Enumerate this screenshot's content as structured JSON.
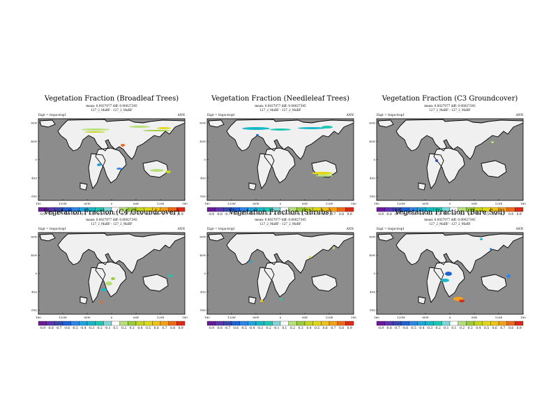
{
  "chart_data": [
    {
      "type": "heatmap",
      "title": "Vegetation Fraction (Broadleaf Trees)",
      "stats": "mean: 0.0027077  diff: 0.00027345",
      "expt": "Expt = tropx-trop1",
      "version": "127_2_MaRF - 127_2_MaRF",
      "period": "ANN",
      "lat_ticks": [
        "60N",
        "40N",
        "0",
        "40S",
        "80S"
      ],
      "lon_ticks": [
        "180",
        "120W",
        "60W",
        "0",
        "60E",
        "120E",
        "180"
      ],
      "colorbar": [
        "-0.9",
        "-0.8",
        "-0.7",
        "-0.6",
        "-0.5",
        "-0.4",
        "-0.3",
        "-0.2",
        "-0.1",
        "0.1",
        "0.2",
        "0.3",
        "0.4",
        "0.5",
        "0.6",
        "0.7",
        "0.8",
        "0.9"
      ]
    },
    {
      "type": "heatmap",
      "title": "Vegetation Fraction (Needleleaf Trees)",
      "stats": "mean: 0.0027077  diff: 0.00027345",
      "expt": "Expt = tropx-trop1",
      "version": "127_2_MaRF - 127_2_MaRF",
      "period": "ANN",
      "lat_ticks": [
        "60N",
        "40N",
        "0",
        "40S",
        "80S"
      ],
      "lon_ticks": [
        "180",
        "120W",
        "60W",
        "0",
        "60E",
        "120E",
        "180"
      ],
      "colorbar": [
        "-0.9",
        "-0.8",
        "-0.7",
        "-0.6",
        "-0.5",
        "-0.4",
        "-0.3",
        "-0.2",
        "-0.1",
        "0.1",
        "0.2",
        "0.3",
        "0.4",
        "0.5",
        "0.6",
        "0.7",
        "0.8",
        "0.9"
      ]
    },
    {
      "type": "heatmap",
      "title": "Vegetation Fraction (C3 Groundcover)",
      "stats": "mean: 0.0027077  diff: 0.00027345",
      "expt": "Expt = tropx-trop1",
      "version": "127_2_MaRF - 127_2_MaRF",
      "period": "ANN",
      "lat_ticks": [
        "60N",
        "40N",
        "0",
        "40S",
        "80S"
      ],
      "lon_ticks": [
        "180",
        "120W",
        "60W",
        "0",
        "60E",
        "120E",
        "180"
      ],
      "colorbar": [
        "-0.9",
        "-0.8",
        "-0.7",
        "-0.6",
        "-0.5",
        "-0.4",
        "-0.3",
        "-0.2",
        "-0.1",
        "0.1",
        "0.2",
        "0.3",
        "0.4",
        "0.5",
        "0.6",
        "0.7",
        "0.8",
        "0.9"
      ]
    },
    {
      "type": "heatmap",
      "title": "Vegetation Fraction (C4 Groundcover)",
      "stats": "mean: 0.0027077  diff: 0.00027345",
      "expt": "Expt = tropx-trop1",
      "version": "127_2_MaRF - 127_2_MaRF",
      "period": "ANN",
      "lat_ticks": [
        "60N",
        "40N",
        "0",
        "40S",
        "80S"
      ],
      "lon_ticks": [
        "180",
        "120W",
        "60W",
        "0",
        "60E",
        "120E",
        "180"
      ],
      "colorbar": [
        "-0.9",
        "-0.8",
        "-0.7",
        "-0.6",
        "-0.5",
        "-0.4",
        "-0.3",
        "-0.2",
        "-0.1",
        "0.1",
        "0.2",
        "0.3",
        "0.4",
        "0.5",
        "0.6",
        "0.7",
        "0.8",
        "0.9"
      ]
    },
    {
      "type": "heatmap",
      "title": "Vegetation Fraction (Shrubs)",
      "stats": "mean: 0.0027077  diff: 0.00027345",
      "expt": "Expt = tropx-trop1",
      "version": "127_2_MaRF - 127_2_MaRF",
      "period": "ANN",
      "lat_ticks": [
        "60N",
        "40N",
        "0",
        "40S",
        "80S"
      ],
      "lon_ticks": [
        "180",
        "120W",
        "60W",
        "0",
        "60E",
        "120E",
        "180"
      ],
      "colorbar": [
        "-0.9",
        "-0.8",
        "-0.7",
        "-0.6",
        "-0.5",
        "-0.4",
        "-0.3",
        "-0.2",
        "-0.1",
        "0.1",
        "0.2",
        "0.3",
        "0.4",
        "0.5",
        "0.6",
        "0.7",
        "0.8",
        "0.9"
      ]
    },
    {
      "type": "heatmap",
      "title": "Vegetation Fraction (Bare Soil)",
      "stats": "mean: 0.0027077  diff: 0.00027345",
      "expt": "Expt = tropx-trop1",
      "version": "127_2_MaRF - 127_2_MaRF",
      "period": "ANN",
      "lat_ticks": [
        "60N",
        "40N",
        "0",
        "40S",
        "80S"
      ],
      "lon_ticks": [
        "180",
        "120W",
        "60W",
        "0",
        "60E",
        "120E",
        "180"
      ],
      "colorbar": [
        "-0.9",
        "-0.8",
        "-0.7",
        "-0.6",
        "-0.5",
        "-0.4",
        "-0.3",
        "-0.2",
        "-0.1",
        "0.1",
        "0.2",
        "0.3",
        "0.4",
        "0.5",
        "0.6",
        "0.7",
        "0.8",
        "0.9"
      ]
    }
  ],
  "colors": {
    "ocean": "#8c8c8c",
    "land": "#f0f0f0",
    "coast": "#000000",
    "palette": [
      "#6a1b9a",
      "#5e35b1",
      "#3949ab",
      "#1e63d6",
      "#2f86e6",
      "#1fa6e0",
      "#17b8c8",
      "#1fc7b0",
      "#7fd8d8",
      "#ffffff",
      "#b8e07a",
      "#9ccc3c",
      "#c6d520",
      "#e0d81a",
      "#f0c418",
      "#f3a01a",
      "#ee6a1a",
      "#d92a1a"
    ]
  }
}
